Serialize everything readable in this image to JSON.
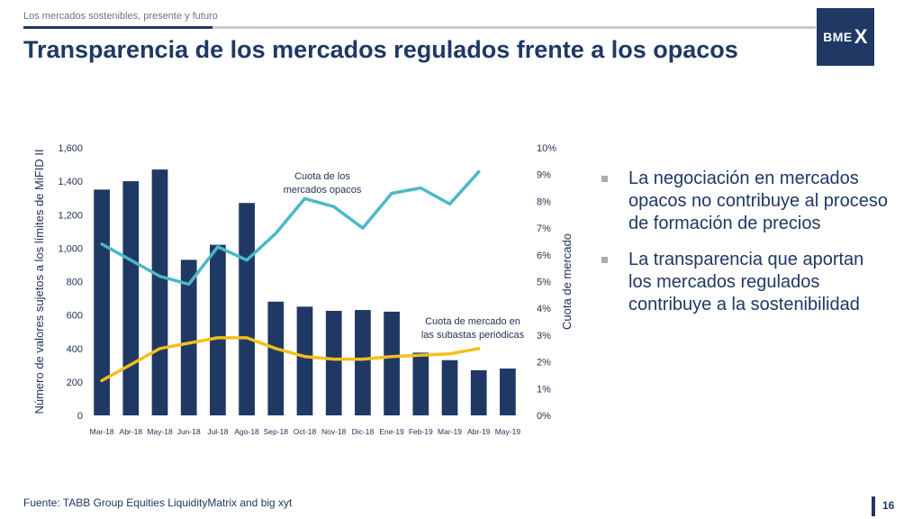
{
  "header": {
    "subtitle": "Los mercados sostenibles, presente y futuro",
    "title": "Transparencia de los mercados regulados frente a los opacos",
    "logo_text": "BME",
    "logo_mark": "X"
  },
  "colors": {
    "navy": "#1f3864",
    "teal": "#4bb8c8",
    "yellow": "#f2bf1a",
    "grey": "#c8c9cc"
  },
  "chart_data": {
    "type": "bar",
    "categories": [
      "Mar-18",
      "Abr-18",
      "May-18",
      "Jun-18",
      "Jul-18",
      "Ago-18",
      "Sep-18",
      "Oct-18",
      "Nov-18",
      "Dic-18",
      "Ene-19",
      "Feb-19",
      "Mar-19",
      "Abr-19",
      "May-19"
    ],
    "series": [
      {
        "type": "bar",
        "axis": "left",
        "values": [
          1350,
          1400,
          1470,
          930,
          1020,
          1270,
          680,
          650,
          625,
          630,
          620,
          375,
          330,
          270,
          280
        ]
      },
      {
        "type": "line",
        "axis": "right",
        "name": "Cuota de los mercados opacos",
        "values": [
          6.4,
          5.8,
          5.2,
          4.9,
          6.3,
          5.8,
          6.8,
          8.1,
          7.8,
          7.0,
          8.3,
          8.5,
          7.9,
          9.1,
          null
        ]
      },
      {
        "type": "line",
        "axis": "right",
        "name": "Cuota de mercado en las subastas periódicas",
        "values": [
          1.3,
          1.9,
          2.5,
          2.7,
          2.9,
          2.9,
          2.5,
          2.2,
          2.1,
          2.1,
          2.2,
          2.25,
          2.3,
          2.5,
          null
        ]
      }
    ],
    "ylabel": "Número de valores sujetos a los límites de MiFID II",
    "y2label": "Cuota de mercado",
    "ylim": [
      0,
      1600
    ],
    "y2lim": [
      0,
      10
    ],
    "yticks": [
      "0",
      "200",
      "400",
      "600",
      "800",
      "1,000",
      "1,200",
      "1,400",
      "1,600"
    ],
    "y2ticks": [
      "0%",
      "1%",
      "2%",
      "3%",
      "4%",
      "5%",
      "6%",
      "7%",
      "8%",
      "9%",
      "10%"
    ],
    "annotations": [
      {
        "lines": [
          "Cuota de los",
          "mercados opacos"
        ]
      },
      {
        "lines": [
          "Cuota de mercado en",
          "las subastas periódicas"
        ]
      }
    ],
    "grid": false,
    "legend": "none"
  },
  "bullets": [
    "La negociación en mercados opacos no contribuye al proceso de formación de precios",
    "La transparencia que aportan los mercados regulados contribuye a la sostenibilidad"
  ],
  "footer": {
    "source": "Fuente: TABB Group Equities LiquidityMatrix and big xyt",
    "page_number": "16"
  }
}
